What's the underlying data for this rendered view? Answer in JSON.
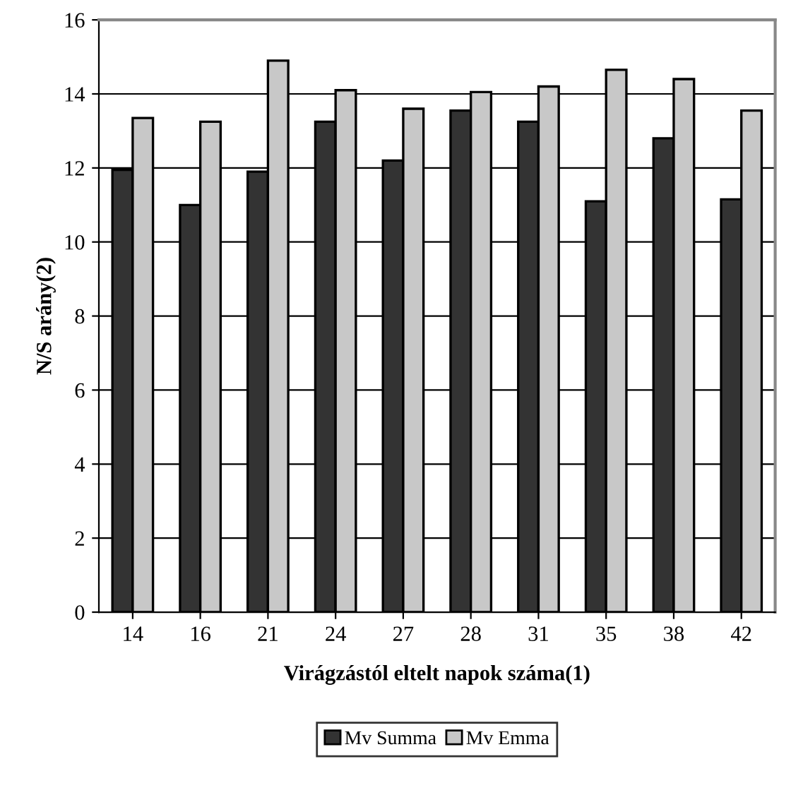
{
  "chart_data": {
    "type": "bar",
    "xlabel": "Virágzástól eltelt napok száma(1)",
    "ylabel": "N/S arány(2)",
    "categories": [
      "14",
      "16",
      "21",
      "24",
      "27",
      "28",
      "31",
      "35",
      "38",
      "42"
    ],
    "series": [
      {
        "name": "Mv Summa",
        "color": "#333333",
        "values": [
          11.95,
          11.0,
          11.9,
          13.25,
          12.2,
          13.55,
          13.25,
          11.1,
          12.8,
          11.15
        ]
      },
      {
        "name": "Mv Emma",
        "color": "#c8c8c8",
        "values": [
          13.35,
          13.25,
          14.9,
          14.1,
          13.6,
          14.05,
          14.2,
          14.65,
          14.4,
          13.55
        ]
      }
    ],
    "ylim": [
      0,
      16
    ],
    "yticks": [
      0,
      2,
      4,
      6,
      8,
      10,
      12,
      14,
      16
    ],
    "grid": "y",
    "legend": "bottom"
  }
}
